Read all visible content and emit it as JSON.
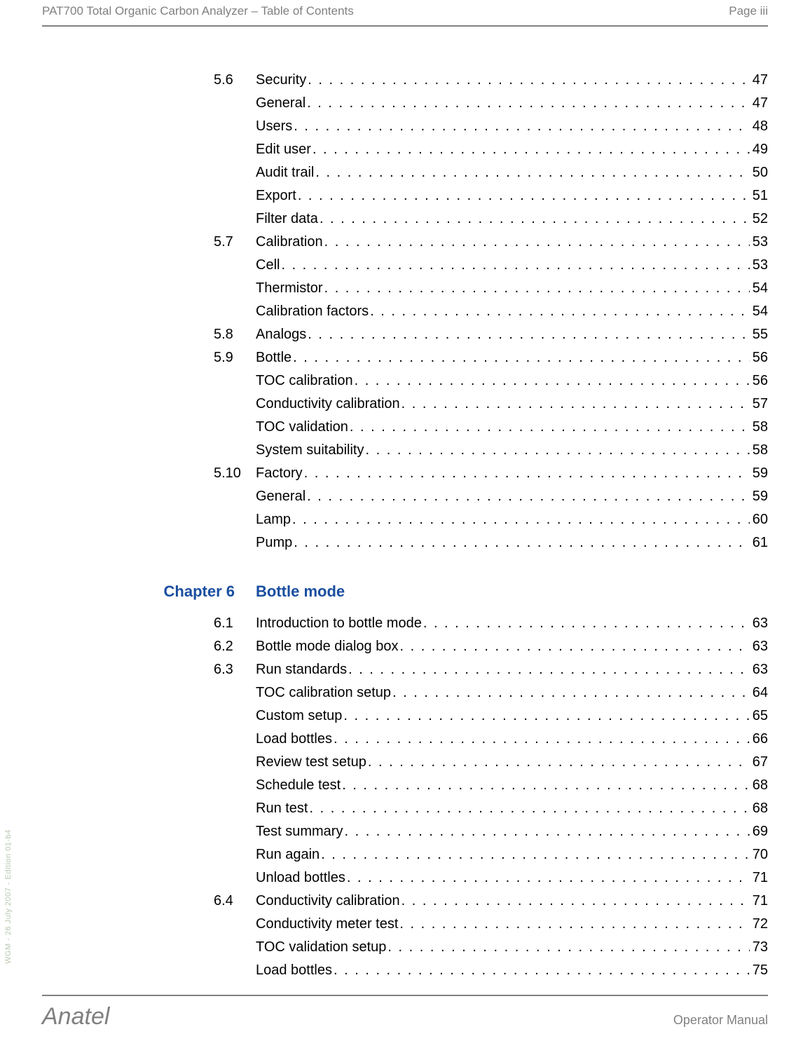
{
  "header": {
    "title": "PAT700 Total Organic Carbon Analyzer – Table of Contents",
    "page": "Page iii"
  },
  "footer": {
    "brand": "Anatel",
    "manual": "Operator Manual"
  },
  "side_text": "WGM - 26 July 2007 - Edition 01-b4",
  "colors": {
    "header_text": "#808080",
    "rule": "#808080",
    "chapter": "#1a4ea0",
    "body": "#000000",
    "side": "#b8c8b0",
    "background": "#ffffff"
  },
  "fonts": {
    "body_size_pt": 15,
    "chapter_size_pt": 16,
    "brand_size_pt": 26
  },
  "toc": [
    {
      "num": "5.6",
      "label": "Security",
      "page": "47"
    },
    {
      "num": "",
      "label": "General",
      "page": "47"
    },
    {
      "num": "",
      "label": "Users",
      "page": "48"
    },
    {
      "num": "",
      "label": "Edit user",
      "page": "49"
    },
    {
      "num": "",
      "label": "Audit trail",
      "page": "50"
    },
    {
      "num": "",
      "label": "Export",
      "page": "51"
    },
    {
      "num": "",
      "label": "Filter data",
      "page": "52"
    },
    {
      "num": "5.7",
      "label": "Calibration",
      "page": "53"
    },
    {
      "num": "",
      "label": "Cell",
      "page": "53"
    },
    {
      "num": "",
      "label": "Thermistor",
      "page": "54"
    },
    {
      "num": "",
      "label": "Calibration factors",
      "page": "54"
    },
    {
      "num": "5.8",
      "label": "Analogs",
      "page": "55"
    },
    {
      "num": "5.9",
      "label": "Bottle",
      "page": "56"
    },
    {
      "num": "",
      "label": "TOC calibration",
      "page": "56"
    },
    {
      "num": "",
      "label": "Conductivity calibration",
      "page": "57"
    },
    {
      "num": "",
      "label": "TOC validation",
      "page": "58"
    },
    {
      "num": "",
      "label": "System suitability",
      "page": "58"
    },
    {
      "num": "5.10",
      "label": "Factory",
      "page": "59"
    },
    {
      "num": "",
      "label": "General",
      "page": "59"
    },
    {
      "num": "",
      "label": "Lamp",
      "page": "60"
    },
    {
      "num": "",
      "label": "Pump",
      "page": "61"
    }
  ],
  "chapter6": {
    "label": "Chapter 6",
    "title": "Bottle mode"
  },
  "toc2": [
    {
      "num": "6.1",
      "label": "Introduction to bottle mode",
      "page": "63"
    },
    {
      "num": "6.2",
      "label": "Bottle mode dialog box",
      "page": "63"
    },
    {
      "num": "6.3",
      "label": "Run standards",
      "page": "63"
    },
    {
      "num": "",
      "label": "TOC calibration setup",
      "page": "64"
    },
    {
      "num": "",
      "label": "Custom setup",
      "page": "65"
    },
    {
      "num": "",
      "label": "Load bottles",
      "page": "66"
    },
    {
      "num": "",
      "label": "Review test setup",
      "page": "67"
    },
    {
      "num": "",
      "label": "Schedule test",
      "page": "68"
    },
    {
      "num": "",
      "label": "Run test",
      "page": "68"
    },
    {
      "num": "",
      "label": "Test summary",
      "page": "69"
    },
    {
      "num": "",
      "label": "Run again",
      "page": "70"
    },
    {
      "num": "",
      "label": "Unload bottles",
      "page": "71"
    },
    {
      "num": "6.4",
      "label": "Conductivity calibration",
      "page": "71"
    },
    {
      "num": "",
      "label": "Conductivity meter test",
      "page": "72"
    },
    {
      "num": "",
      "label": "TOC validation setup",
      "page": "73"
    },
    {
      "num": "",
      "label": "Load bottles",
      "page": "75"
    }
  ]
}
